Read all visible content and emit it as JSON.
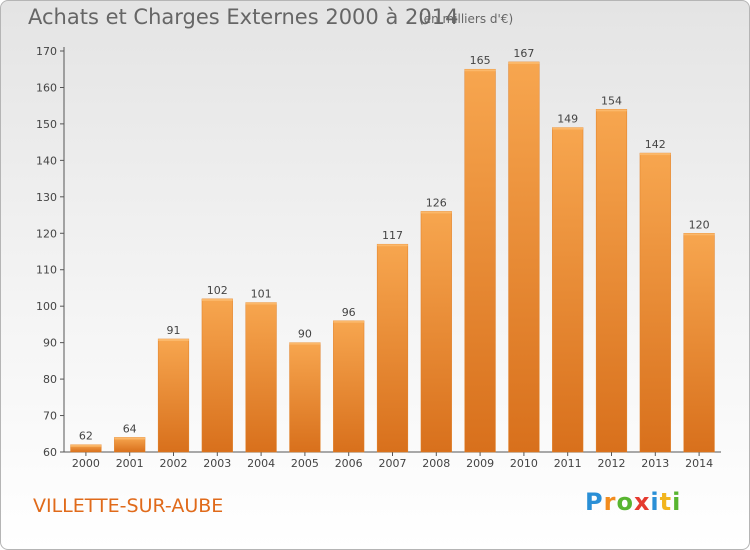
{
  "title": "Achats et Charges Externes 2000 à 2014",
  "subtitle": "(en milliers d'€)",
  "commune": "VILLETTE-SUR-AUBE",
  "logo": {
    "letters": [
      "P",
      "r",
      "o",
      "x",
      "i",
      "t",
      "i"
    ],
    "colors": [
      "#2a8fd6",
      "#f28c1e",
      "#58b530",
      "#e53a2f",
      "#2a8fd6",
      "#f2b51e",
      "#58b530"
    ]
  },
  "colors": {
    "bar": "#f08a2a",
    "bar_light": "#f7a956",
    "title_text": "#666666",
    "commune_text": "#e06a1a"
  },
  "chart_data": {
    "type": "bar",
    "categories": [
      "2000",
      "2001",
      "2002",
      "2003",
      "2004",
      "2005",
      "2006",
      "2007",
      "2008",
      "2009",
      "2010",
      "2011",
      "2012",
      "2013",
      "2014"
    ],
    "values": [
      62,
      64,
      91,
      102,
      101,
      90,
      96,
      117,
      126,
      165,
      167,
      149,
      154,
      142,
      120
    ],
    "title": "Achats et Charges Externes 2000 à 2014",
    "xlabel": "",
    "ylabel": "",
    "ylim": [
      60,
      170
    ],
    "yticks": [
      60,
      70,
      80,
      90,
      100,
      110,
      120,
      130,
      140,
      150,
      160,
      170
    ],
    "grid": false,
    "legend": "none"
  }
}
